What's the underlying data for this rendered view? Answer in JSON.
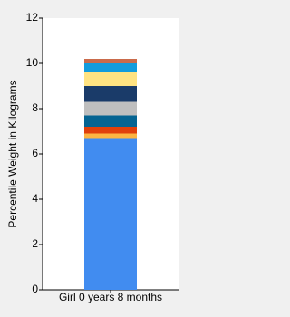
{
  "chart_data": {
    "type": "stacked_bar",
    "y_label": "Percentile Weight in Kilograms",
    "categories": [
      "Girl 0 years 8 months"
    ],
    "series": [
      {
        "color": "#418cf0",
        "values": [
          6.7
        ]
      },
      {
        "color": "#fcb441",
        "values": [
          0.2
        ]
      },
      {
        "color": "#e0400a",
        "values": [
          0.3
        ]
      },
      {
        "color": "#056492",
        "values": [
          0.5
        ]
      },
      {
        "color": "#bfbfbf",
        "values": [
          0.6
        ]
      },
      {
        "color": "#1a3b69",
        "values": [
          0.7
        ]
      },
      {
        "color": "#ffe382",
        "values": [
          0.6
        ]
      },
      {
        "color": "#129cdd",
        "values": [
          0.4
        ]
      },
      {
        "color": "#ca6b4b",
        "values": [
          0.2
        ]
      }
    ],
    "ylim": [
      0,
      12
    ],
    "yticks": [
      0,
      2,
      4,
      6,
      8,
      10,
      12
    ]
  }
}
